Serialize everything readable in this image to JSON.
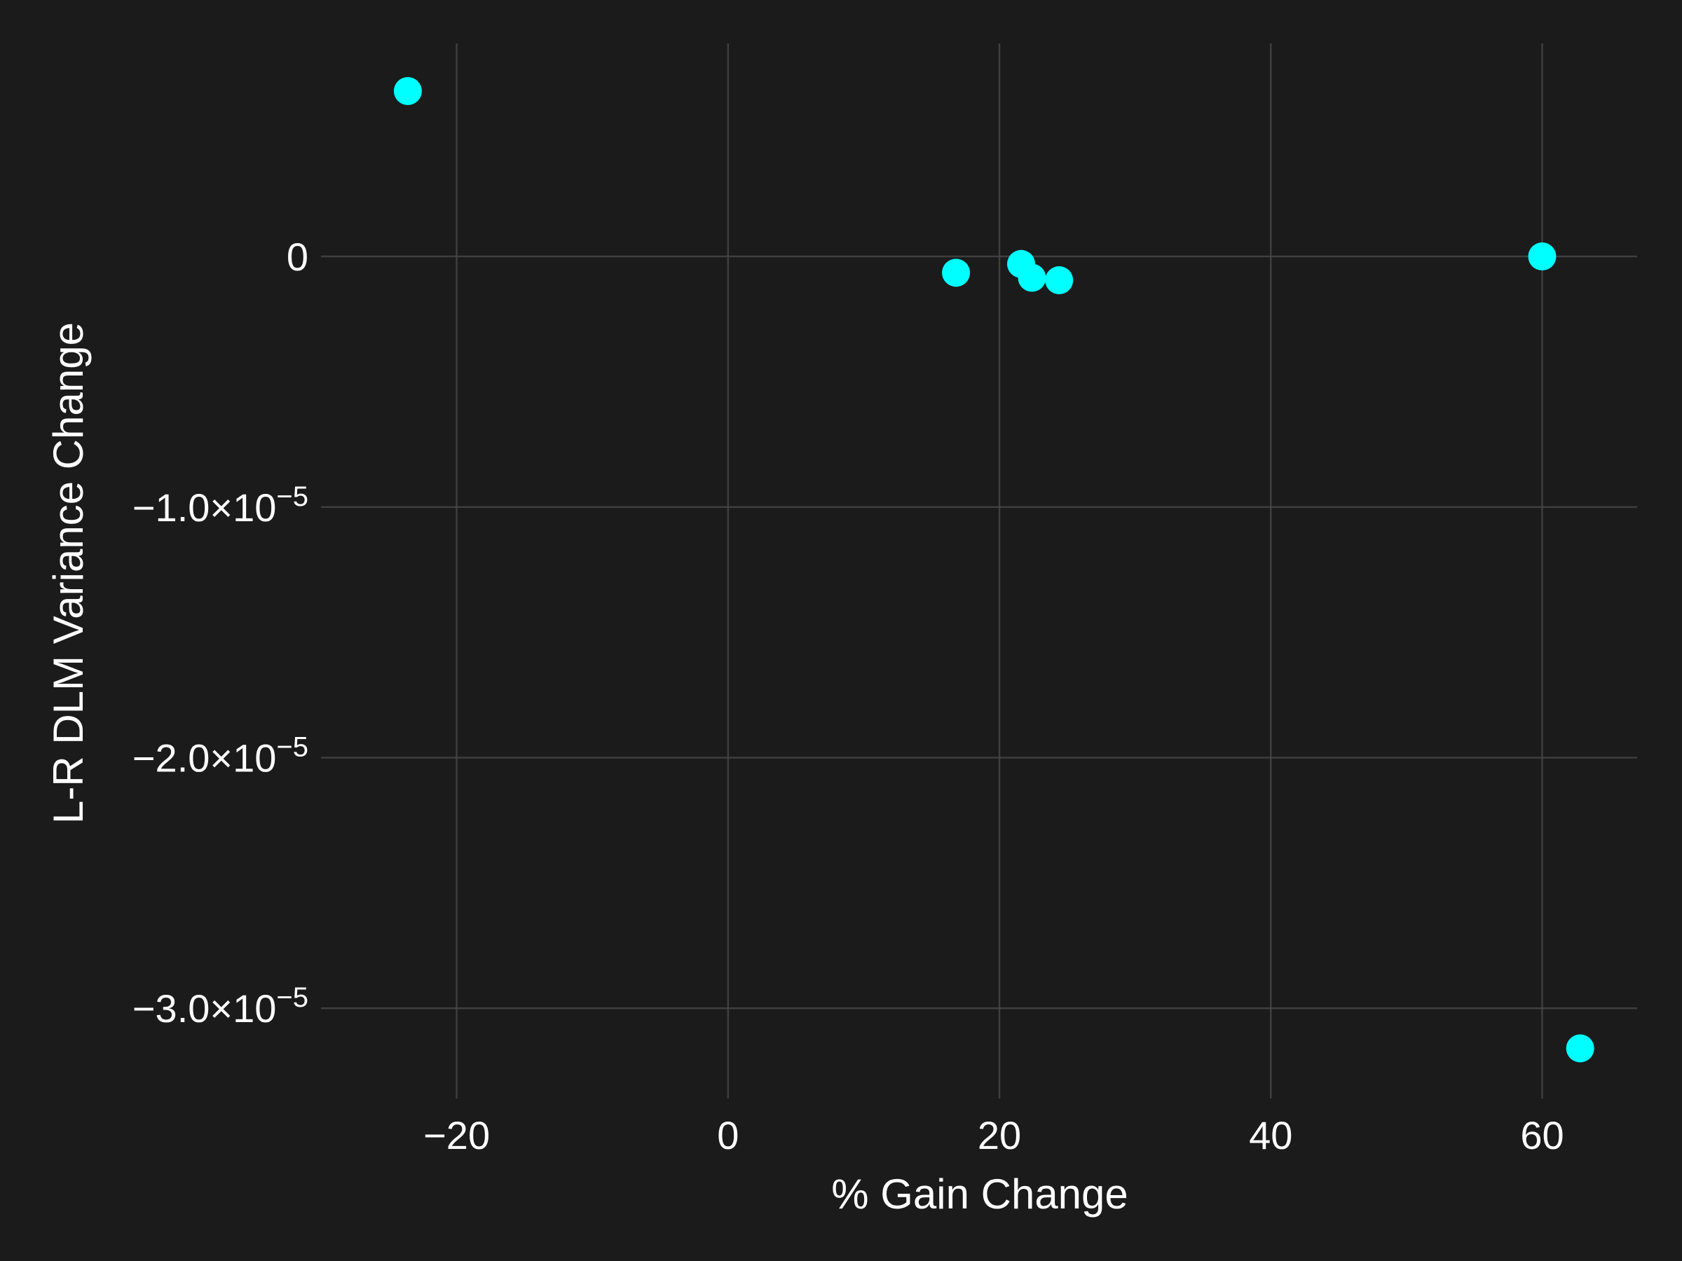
{
  "chart_data": {
    "type": "scatter",
    "title": "",
    "xlabel": "% Gain Change",
    "ylabel": "L-R DLM Variance Change",
    "xlim": [
      -30,
      67
    ],
    "ylim": [
      -3.36e-05,
      8.5e-06
    ],
    "grid": true,
    "x_ticks": [
      {
        "value": -20,
        "label": "−20"
      },
      {
        "value": 0,
        "label": "0"
      },
      {
        "value": 20,
        "label": "20"
      },
      {
        "value": 40,
        "label": "40"
      },
      {
        "value": 60,
        "label": "60"
      }
    ],
    "y_ticks": [
      {
        "value": 0,
        "mantissa": "0",
        "exponent": ""
      },
      {
        "value": -1e-05,
        "mantissa": "−1.0×10",
        "exponent": "−5"
      },
      {
        "value": -2e-05,
        "mantissa": "−2.0×10",
        "exponent": "−5"
      },
      {
        "value": -3e-05,
        "mantissa": "−3.0×10",
        "exponent": "−5"
      }
    ],
    "point_color": "#00ffff",
    "background_color": "#1b1b1b",
    "series": [
      {
        "points": [
          {
            "x": -23.6,
            "y": 6.6e-06
          },
          {
            "x": 16.8,
            "y": -6.5e-07
          },
          {
            "x": 21.6,
            "y": -3e-07
          },
          {
            "x": 22.4,
            "y": -8.5e-07
          },
          {
            "x": 24.4,
            "y": -9.5e-07
          },
          {
            "x": 60.0,
            "y": 0.0
          },
          {
            "x": 62.8,
            "y": -3.16e-05
          }
        ]
      }
    ]
  }
}
